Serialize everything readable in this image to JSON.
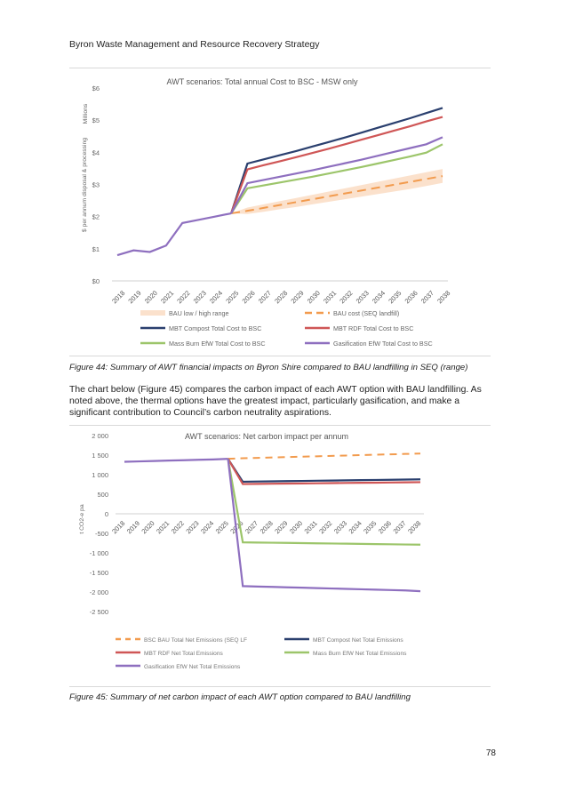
{
  "page": {
    "header": "Byron Waste Management and Resource Recovery Strategy",
    "page_number": "78",
    "figure44_caption": "Figure 44: Summary of AWT financial impacts on Byron Shire compared to BAU landfilling in SEQ (range)",
    "paragraph": "The chart below (Figure 45) compares the carbon impact of each AWT option with BAU landfilling. As noted above, the thermal options have the greatest impact, particularly gasification, and make a significant contribution to Council’s carbon neutrality aspirations.",
    "figure45_caption": "Figure 45: Summary of net carbon impact of each AWT option compared to BAU landfilling"
  },
  "colors": {
    "mbt_compost": "#2a3f6e",
    "mbt_rdf": "#cf5656",
    "mass_burn": "#9cc56a",
    "gasification": "#8e6fbf",
    "bau": "#f29b4e",
    "bau_range": "#fbe1cc"
  },
  "chart_data": [
    {
      "type": "line",
      "title": "AWT scenarios: Total annual Cost to BSC - MSW only",
      "ylabel": "$ per annum disposal & processing",
      "yunit": "Millions",
      "ylim": [
        0,
        6
      ],
      "yticks": [
        "$0",
        "$1",
        "$2",
        "$3",
        "$4",
        "$5",
        "$6"
      ],
      "categories": [
        "2018",
        "2019",
        "2020",
        "2021",
        "2022",
        "2023",
        "2024",
        "2025",
        "2026",
        "2027",
        "2028",
        "2029",
        "2030",
        "2031",
        "2032",
        "2033",
        "2034",
        "2035",
        "2036",
        "2037",
        "2038"
      ],
      "legend": [
        "BAU low / high range",
        "BAU cost (SEQ landfill)",
        "MBT Compost Total Cost to BSC",
        "MBT RDF Total Cost to BSC",
        "Mass Burn EfW Total Cost to BSC",
        "Gasification EfW Total Cost to BSC"
      ],
      "series": [
        {
          "name": "BAU cost (SEQ landfill)",
          "values": [
            0.8,
            0.95,
            0.9,
            1.1,
            1.8,
            1.9,
            2.0,
            2.1,
            2.18,
            2.27,
            2.36,
            2.45,
            2.54,
            2.63,
            2.72,
            2.81,
            2.9,
            2.99,
            3.08,
            3.17,
            3.26
          ]
        },
        {
          "name": "BAU low",
          "values": [
            0.8,
            0.95,
            0.9,
            1.1,
            1.8,
            1.9,
            2.0,
            2.1,
            2.08,
            2.15,
            2.23,
            2.3,
            2.38,
            2.46,
            2.54,
            2.62,
            2.7,
            2.78,
            2.86,
            2.95,
            3.05
          ]
        },
        {
          "name": "BAU high",
          "values": [
            0.8,
            0.95,
            0.9,
            1.1,
            1.8,
            1.9,
            2.0,
            2.1,
            2.28,
            2.38,
            2.48,
            2.58,
            2.68,
            2.78,
            2.88,
            2.98,
            3.08,
            3.18,
            3.28,
            3.38,
            3.48
          ]
        },
        {
          "name": "MBT Compost Total Cost to BSC",
          "values": [
            0.8,
            0.95,
            0.9,
            1.1,
            1.8,
            1.9,
            2.0,
            2.1,
            3.65,
            3.78,
            3.91,
            4.04,
            4.18,
            4.32,
            4.46,
            4.61,
            4.76,
            4.91,
            5.06,
            5.22,
            5.38
          ]
        },
        {
          "name": "MBT RDF Total Cost to BSC",
          "values": [
            0.8,
            0.95,
            0.9,
            1.1,
            1.8,
            1.9,
            2.0,
            2.1,
            3.47,
            3.6,
            3.72,
            3.85,
            3.98,
            4.11,
            4.25,
            4.39,
            4.53,
            4.67,
            4.81,
            4.96,
            5.1
          ]
        },
        {
          "name": "Mass Burn EfW Total Cost to BSC",
          "values": [
            0.8,
            0.95,
            0.9,
            1.1,
            1.8,
            1.9,
            2.0,
            2.1,
            2.88,
            2.97,
            3.06,
            3.15,
            3.24,
            3.34,
            3.44,
            3.54,
            3.65,
            3.76,
            3.87,
            3.99,
            4.25
          ]
        },
        {
          "name": "Gasification EfW Total Cost to BSC",
          "values": [
            0.8,
            0.95,
            0.9,
            1.1,
            1.8,
            1.9,
            2.0,
            2.1,
            3.04,
            3.14,
            3.24,
            3.34,
            3.44,
            3.55,
            3.66,
            3.77,
            3.89,
            4.01,
            4.13,
            4.25,
            4.47
          ]
        }
      ]
    },
    {
      "type": "line",
      "title": "AWT scenarios: Net carbon impact per annum",
      "ylabel": "t CO2-e pa",
      "ylim": [
        -2500,
        2000
      ],
      "yticks": [
        "2 000",
        "1 500",
        "1 000",
        "500",
        "0",
        "-500",
        "-1 000",
        "-1 500",
        "-2 000",
        "-2 500"
      ],
      "categories": [
        "2018",
        "2019",
        "2020",
        "2021",
        "2022",
        "2023",
        "2024",
        "2025",
        "2026",
        "2027",
        "2028",
        "2029",
        "2030",
        "2031",
        "2032",
        "2033",
        "2034",
        "2035",
        "2036",
        "2037",
        "2038"
      ],
      "legend": [
        "BSC BAU Total Net Emissions (SEQ LF",
        "MBT Compost Net Total Emissions",
        "MBT RDF Net Total Emissions",
        "Mass Burn EfW Net Total Emissions",
        "Gasification EfW Net Total Emissions"
      ],
      "series": [
        {
          "name": "BSC BAU Total Net Emissions (SEQ LF",
          "values": [
            1330,
            1340,
            1350,
            1360,
            1370,
            1380,
            1390,
            1405,
            1420,
            1430,
            1440,
            1450,
            1460,
            1470,
            1480,
            1490,
            1500,
            1510,
            1520,
            1530,
            1540
          ]
        },
        {
          "name": "MBT Compost Net Total Emissions",
          "values": [
            1330,
            1340,
            1350,
            1360,
            1370,
            1380,
            1390,
            1405,
            820,
            825,
            830,
            835,
            840,
            845,
            850,
            855,
            860,
            865,
            870,
            875,
            880
          ]
        },
        {
          "name": "MBT RDF Net Total Emissions",
          "values": [
            1330,
            1340,
            1350,
            1360,
            1370,
            1380,
            1390,
            1405,
            760,
            764,
            768,
            772,
            776,
            780,
            784,
            788,
            792,
            796,
            800,
            804,
            808
          ]
        },
        {
          "name": "Mass Burn EfW Net Total Emissions",
          "values": [
            1330,
            1340,
            1350,
            1360,
            1370,
            1380,
            1390,
            1405,
            -730,
            -735,
            -740,
            -745,
            -750,
            -755,
            -760,
            -765,
            -770,
            -775,
            -780,
            -785,
            -790
          ]
        },
        {
          "name": "Gasification EfW Net Total Emissions",
          "values": [
            1330,
            1340,
            1350,
            1360,
            1370,
            1380,
            1390,
            1405,
            -1850,
            -1860,
            -1870,
            -1880,
            -1890,
            -1900,
            -1910,
            -1920,
            -1930,
            -1940,
            -1950,
            -1960,
            -1980
          ]
        }
      ]
    }
  ]
}
